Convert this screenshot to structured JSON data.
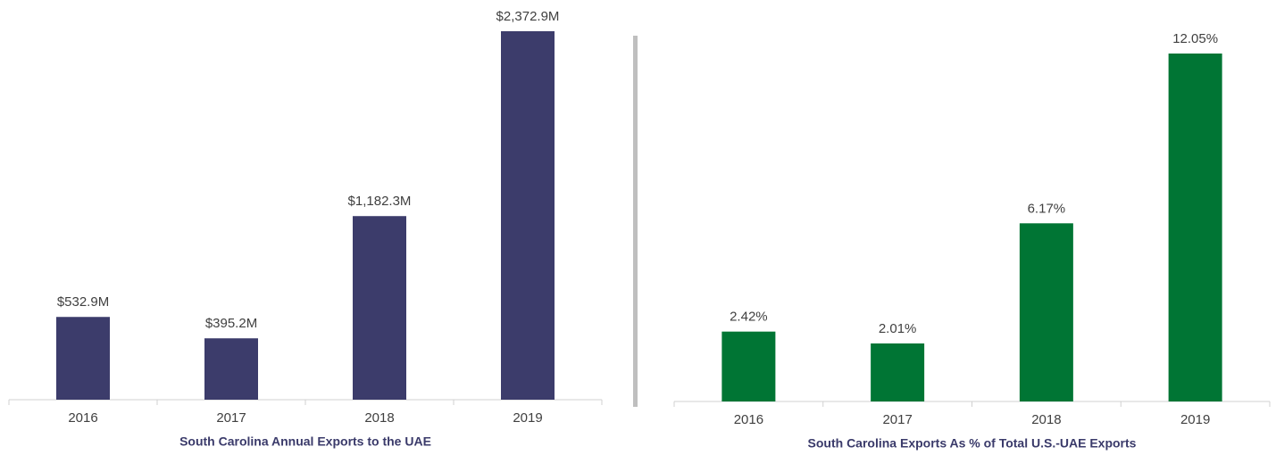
{
  "chart_data": [
    {
      "type": "bar",
      "title": "South Carolina Annual Exports to the UAE",
      "categories": [
        "2016",
        "2017",
        "2018",
        "2019"
      ],
      "values": [
        532.9,
        395.2,
        1182.3,
        2372.9
      ],
      "value_labels": [
        "$532.9M",
        "$395.2M",
        "$1,182.3M",
        "$2,372.9M"
      ],
      "color": "#3c3c6b"
    },
    {
      "type": "bar",
      "title": "South Carolina Exports As % of Total U.S.-UAE Exports",
      "categories": [
        "2016",
        "2017",
        "2018",
        "2019"
      ],
      "values": [
        2.42,
        2.01,
        6.17,
        12.05
      ],
      "value_labels": [
        "2.42%",
        "2.01%",
        "6.17%",
        "12.05%"
      ],
      "color": "#007534"
    }
  ]
}
